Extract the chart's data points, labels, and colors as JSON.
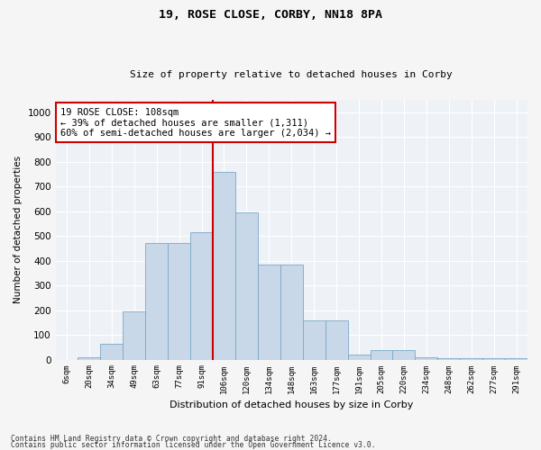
{
  "title1": "19, ROSE CLOSE, CORBY, NN18 8PA",
  "title2": "Size of property relative to detached houses in Corby",
  "xlabel": "Distribution of detached houses by size in Corby",
  "ylabel": "Number of detached properties",
  "categories": [
    "6sqm",
    "20sqm",
    "34sqm",
    "49sqm",
    "63sqm",
    "77sqm",
    "91sqm",
    "106sqm",
    "120sqm",
    "134sqm",
    "148sqm",
    "163sqm",
    "177sqm",
    "191sqm",
    "205sqm",
    "220sqm",
    "234sqm",
    "248sqm",
    "262sqm",
    "277sqm",
    "291sqm"
  ],
  "values": [
    0,
    10,
    65,
    195,
    470,
    470,
    515,
    760,
    595,
    385,
    385,
    160,
    160,
    20,
    40,
    40,
    10,
    5,
    5,
    5,
    5
  ],
  "bar_color": "#c8d8e8",
  "bar_edge_color": "#7ba8c8",
  "vline_color": "#cc0000",
  "vline_index": 7,
  "annotation_text": "19 ROSE CLOSE: 108sqm\n← 39% of detached houses are smaller (1,311)\n60% of semi-detached houses are larger (2,034) →",
  "annotation_box_facecolor": "#ffffff",
  "annotation_box_edgecolor": "#cc0000",
  "ylim": [
    0,
    1050
  ],
  "yticks": [
    0,
    100,
    200,
    300,
    400,
    500,
    600,
    700,
    800,
    900,
    1000
  ],
  "bg_color": "#eef2f7",
  "grid_color": "#ffffff",
  "fig_facecolor": "#f5f5f5",
  "footer1": "Contains HM Land Registry data © Crown copyright and database right 2024.",
  "footer2": "Contains public sector information licensed under the Open Government Licence v3.0."
}
